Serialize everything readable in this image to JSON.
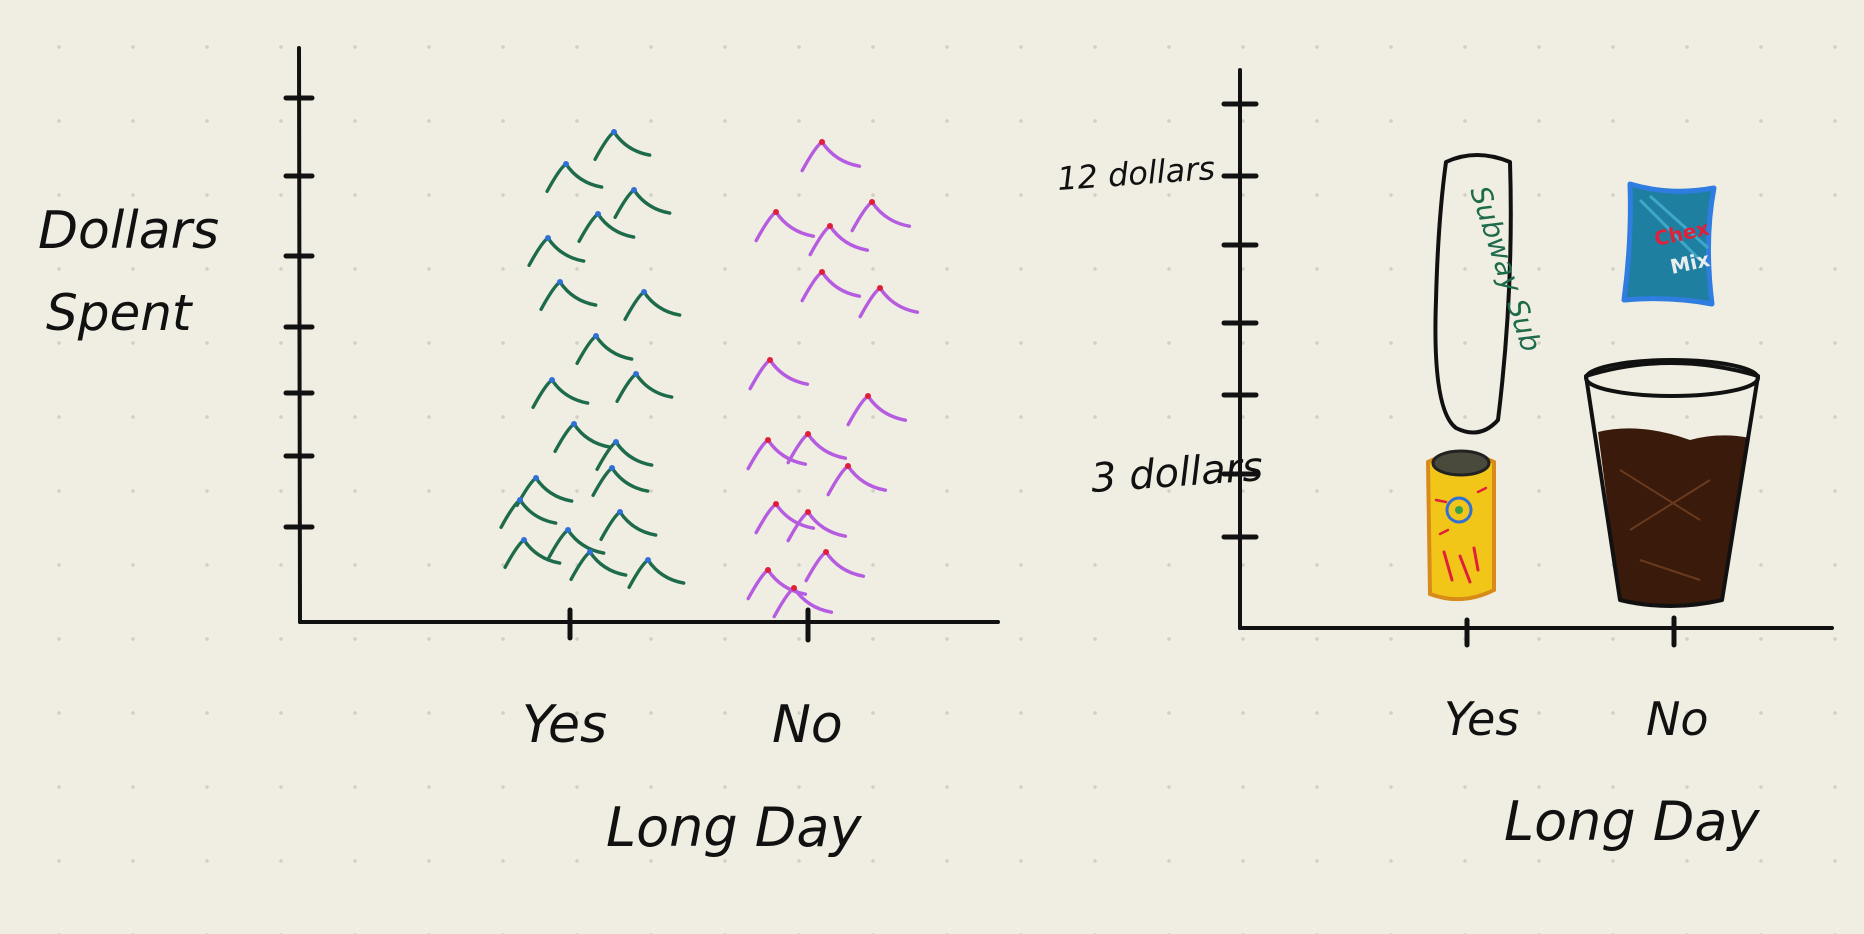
{
  "chart_data": [
    {
      "type": "scatter",
      "ylabel_lines": [
        "Dollars",
        "Spent"
      ],
      "xlabel": "Long Day",
      "categories": [
        "Yes",
        "No"
      ],
      "y_ticks": 7,
      "series": [
        {
          "category": "Yes",
          "color": "#1e6b4c",
          "tip_color": "#2f6fd6",
          "count": 20
        },
        {
          "category": "No",
          "color": "#b55ce0",
          "tip_color": "#e0203a",
          "count": 16
        }
      ]
    },
    {
      "type": "bar",
      "xlabel": "Long Day",
      "categories": [
        "Yes",
        "No"
      ],
      "y_ticks": 8,
      "annotations": [
        "12 dollars",
        "3 dollars"
      ],
      "pictures": {
        "sub_text": "Subway Sub",
        "chex_line1": "Chex",
        "chex_line2": "Mix"
      },
      "values": [
        {
          "category": "Yes",
          "items": [
            {
              "name": "subway sandwich",
              "value": 12
            },
            {
              "name": "energy drink can",
              "value": 3
            }
          ]
        },
        {
          "category": "No",
          "items": [
            {
              "name": "chex mix bag",
              "value": 3
            },
            {
              "name": "cup of soda",
              "value": 5
            }
          ]
        }
      ]
    }
  ],
  "colors": {
    "background": "#f0eee3",
    "ink": "#111111",
    "yes_marks": "#1e6b4c",
    "no_marks": "#b55ce0",
    "chex_blue": "#1f7fa0",
    "can_yellow": "#f2c619",
    "soda_brown": "#3a1a0a"
  }
}
